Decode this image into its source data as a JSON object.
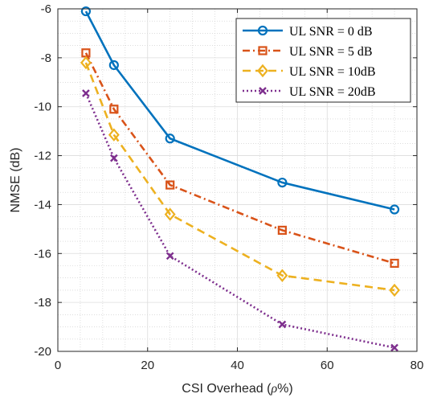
{
  "chart_data": {
    "type": "line",
    "xlabel_main": "CSI Overhead (",
    "xlabel_rho": "ρ",
    "xlabel_end": "%)",
    "ylabel": "NMSE (dB)",
    "xlim": [
      0,
      80
    ],
    "ylim": [
      -20,
      -6
    ],
    "xticks": [
      0,
      20,
      40,
      60,
      80
    ],
    "yticks": [
      -20,
      -18,
      -16,
      -14,
      -12,
      -10,
      -8,
      -6
    ],
    "grid": true,
    "minor_grid": true,
    "legend_position": "top-right",
    "x": [
      6.25,
      12.5,
      25,
      50,
      75
    ],
    "series": [
      {
        "name": "UL SNR = 0 dB",
        "values": [
          -6.1,
          -8.3,
          -11.3,
          -13.1,
          -14.2
        ],
        "color": "#0072BD",
        "marker": "circle",
        "dash": "solid"
      },
      {
        "name": "UL SNR = 5 dB",
        "values": [
          -7.8,
          -10.1,
          -13.2,
          -15.05,
          -16.4
        ],
        "color": "#D95319",
        "marker": "square",
        "dash": "dashdot"
      },
      {
        "name": "UL SNR = 10dB",
        "values": [
          -8.2,
          -11.15,
          -14.4,
          -16.9,
          -17.5
        ],
        "color": "#EDB120",
        "marker": "diamond",
        "dash": "dashed"
      },
      {
        "name": "UL SNR = 20dB",
        "values": [
          -9.45,
          -12.1,
          -16.1,
          -18.9,
          -19.85
        ],
        "color": "#7E2F8E",
        "marker": "x",
        "dash": "dotted"
      }
    ]
  }
}
